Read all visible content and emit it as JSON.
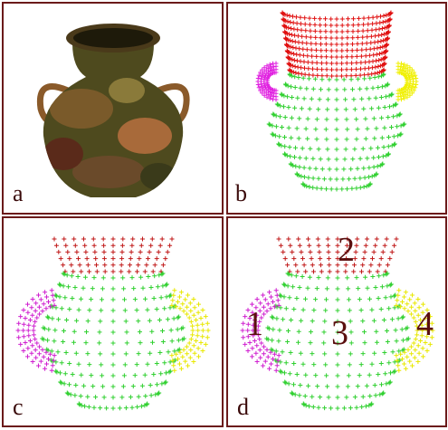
{
  "panels": [
    {
      "label": "a"
    },
    {
      "label": "b"
    },
    {
      "label": "c"
    },
    {
      "label": "d",
      "part_labels": [
        "1",
        "2",
        "3",
        "4"
      ]
    }
  ]
}
